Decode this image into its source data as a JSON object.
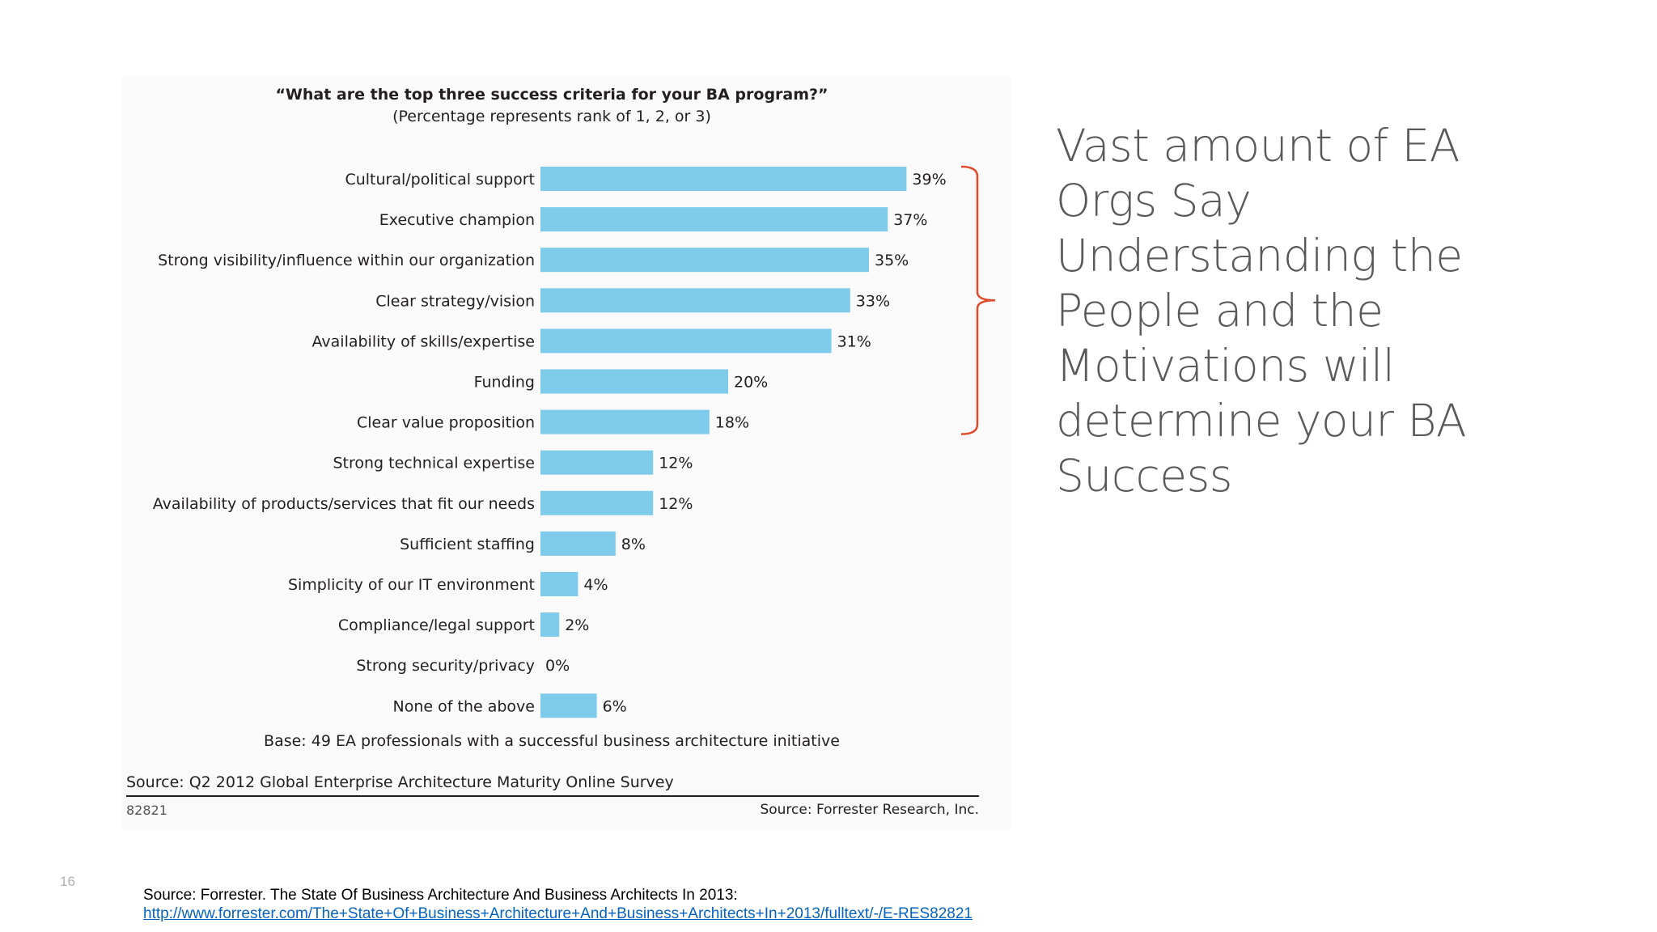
{
  "slide": {
    "headline": "Vast amount of EA Orgs Say Understanding the People and the Motivations will determine your BA Success",
    "page_number": "16",
    "footer_source": "Source: Forrester. The State Of Business Architecture And Business Architects In 2013:",
    "footer_link": "http://www.forrester.com/The+State+Of+Business+Architecture+And+Business+Architects+In+2013/fulltext/-/E-RES82821"
  },
  "colors": {
    "bar": "#7fcbec",
    "bracket": "#e0492a",
    "text": "#231f20"
  },
  "chart_data": {
    "type": "bar",
    "orientation": "horizontal",
    "title": "“What are the top three success criteria for your BA program?”",
    "subtitle": "(Percentage represents rank of 1, 2, or 3)",
    "categories": [
      "Cultural/political support",
      "Executive champion",
      "Strong visibility/influence within our organization",
      "Clear strategy/vision",
      "Availability of skills/expertise",
      "Funding",
      "Clear value proposition",
      "Strong technical expertise",
      "Availability of products/services that fit our needs",
      "Sufficient staffing",
      "Simplicity of our IT environment",
      "Compliance/legal support",
      "Strong security/privacy",
      "None of the above"
    ],
    "values": [
      39,
      37,
      35,
      33,
      31,
      20,
      18,
      12,
      12,
      8,
      4,
      2,
      0,
      6
    ],
    "value_labels": [
      "39%",
      "37%",
      "35%",
      "33%",
      "31%",
      "20%",
      "18%",
      "12%",
      "12%",
      "8%",
      "4%",
      "2%",
      "0%",
      "6%"
    ],
    "bracket_group": [
      0,
      6
    ],
    "base": "Base: 49 EA professionals with a successful business architecture initiative",
    "source": "Source: Q2 2012 Global Enterprise Architecture Maturity Online Survey",
    "id": "82821",
    "credit": "Source: Forrester Research, Inc.",
    "grid": false,
    "legend": "none"
  }
}
